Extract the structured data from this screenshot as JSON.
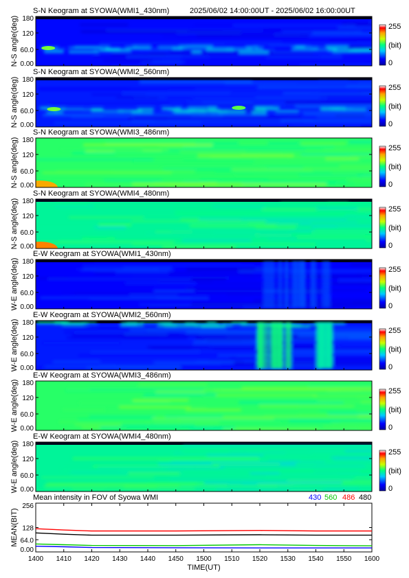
{
  "header": {
    "time_range": "2025/06/02 14:00:00UT - 2025/06/02 16:00:00UT"
  },
  "colorbar": {
    "max_label": "255",
    "unit_label": "(bit)",
    "min_label": "0"
  },
  "chart_data": [
    {
      "type": "heatmap",
      "title": "S-N Keogram at SYOWA(WMI1_430nm)",
      "ylabel": "N-S angle(deg)",
      "yticks": [
        "180",
        "120",
        "60.0",
        "0.00"
      ],
      "ylim": [
        0,
        180
      ],
      "xlim": [
        1400,
        1600
      ],
      "clim": [
        0,
        255
      ],
      "colormap": "rainbow",
      "base_level": 40,
      "features": [
        {
          "desc": "brighter band",
          "angle_range": [
            55,
            75
          ],
          "level": 95
        },
        {
          "desc": "green spot",
          "time": 1403,
          "angle": 65,
          "level": 150
        }
      ]
    },
    {
      "type": "heatmap",
      "title": "S-N Keogram at SYOWA(WMI2_560nm)",
      "ylabel": "N-S angle(deg)",
      "yticks": [
        "180",
        "120",
        "60.0",
        "0.00"
      ],
      "ylim": [
        0,
        180
      ],
      "xlim": [
        1400,
        1600
      ],
      "clim": [
        0,
        255
      ],
      "colormap": "rainbow",
      "base_level": 45,
      "features": [
        {
          "desc": "brighter band",
          "angle_range": [
            55,
            75
          ],
          "level": 100
        },
        {
          "desc": "green spot",
          "time": 1405,
          "angle": 65,
          "level": 150
        },
        {
          "desc": "green spot",
          "time": 1511,
          "angle": 70,
          "level": 145
        }
      ]
    },
    {
      "type": "heatmap",
      "title": "S-N Keogram at SYOWA(WMI3_486nm)",
      "ylabel": "N-S angle(deg)",
      "yticks": [
        "180",
        "120",
        "60.0",
        "0.00"
      ],
      "ylim": [
        0,
        180
      ],
      "xlim": [
        1400,
        1600
      ],
      "clim": [
        0,
        255
      ],
      "colormap": "rainbow",
      "base_level": 135,
      "features": [
        {
          "desc": "orange corner",
          "time": 1400,
          "angle": 0,
          "level": 200
        }
      ]
    },
    {
      "type": "heatmap",
      "title": "S-N Keogram at SYOWA(WMI4_480nm)",
      "ylabel": "N-S angle(deg)",
      "yticks": [
        "180",
        "120",
        "60.0",
        "0.00"
      ],
      "ylim": [
        0,
        180
      ],
      "xlim": [
        1400,
        1600
      ],
      "clim": [
        0,
        255
      ],
      "colormap": "rainbow",
      "base_level": 120,
      "features": [
        {
          "desc": "orange corner",
          "time": 1400,
          "angle": 0,
          "level": 210
        }
      ]
    },
    {
      "type": "heatmap",
      "title": "E-W Keogram at SYOWA(WMI1_430nm)",
      "ylabel": "W-E angle(deg)",
      "yticks": [
        "180",
        "120",
        "60.0",
        "0.00"
      ],
      "ylim": [
        0,
        180
      ],
      "xlim": [
        1400,
        1600
      ],
      "clim": [
        0,
        255
      ],
      "colormap": "rainbow",
      "base_level": 38,
      "features": [
        {
          "desc": "brighter streaks",
          "time_range": [
            1520,
            1545
          ],
          "level": 60
        }
      ]
    },
    {
      "type": "heatmap",
      "title": "E-W Keogram at SYOWA(WMI2_560nm)",
      "ylabel": "W-E angle(deg)",
      "yticks": [
        "180",
        "120",
        "60.0",
        "0.00"
      ],
      "ylim": [
        0,
        180
      ],
      "xlim": [
        1400,
        1600
      ],
      "clim": [
        0,
        255
      ],
      "colormap": "rainbow",
      "base_level": 45,
      "features": [
        {
          "desc": "brighter top edge",
          "angle_range": [
            165,
            180
          ],
          "level": 110
        },
        {
          "desc": "green columns",
          "time_range": [
            1518,
            1530
          ],
          "level": 130
        },
        {
          "desc": "green columns",
          "time_range": [
            1540,
            1545
          ],
          "level": 115
        }
      ]
    },
    {
      "type": "heatmap",
      "title": "E-W Keogram at SYOWA(WMI3_486nm)",
      "ylabel": "W-E angle(deg)",
      "yticks": [
        "180",
        "120",
        "60.0",
        "0.00"
      ],
      "ylim": [
        0,
        180
      ],
      "xlim": [
        1400,
        1600
      ],
      "clim": [
        0,
        255
      ],
      "colormap": "rainbow",
      "base_level": 135,
      "features": []
    },
    {
      "type": "heatmap",
      "title": "E-W Keogram at SYOWA(WMI4_480nm)",
      "ylabel": "W-E angle(deg)",
      "yticks": [
        "180",
        "120",
        "60.0",
        "0.00"
      ],
      "ylim": [
        0,
        180
      ],
      "xlim": [
        1400,
        1600
      ],
      "clim": [
        0,
        255
      ],
      "colormap": "rainbow",
      "base_level": 120,
      "features": []
    },
    {
      "type": "line",
      "title": "Mean intensity in FOV of Syowa WMI",
      "xlabel": "TIME(UT)",
      "ylabel": "MEAN(BIT)",
      "xlim": [
        1400,
        1600
      ],
      "ylim": [
        0,
        256
      ],
      "x_ticks": [
        1400,
        1410,
        1420,
        1430,
        1440,
        1450,
        1500,
        1510,
        1520,
        1530,
        1540,
        1550,
        1600
      ],
      "y_ticks": [
        "256",
        "128",
        "64.0",
        "0.00"
      ],
      "legend_position": "top-right",
      "series": [
        {
          "name": "430",
          "color": "#0000ff",
          "x": [
            1400,
            1410,
            1420,
            1450,
            1520,
            1540,
            1600
          ],
          "values": [
            30,
            27,
            23,
            22,
            21,
            21,
            21
          ]
        },
        {
          "name": "560",
          "color": "#00c800",
          "x": [
            1400,
            1410,
            1420,
            1450,
            1520,
            1540,
            1600
          ],
          "values": [
            42,
            38,
            34,
            33,
            38,
            34,
            32
          ]
        },
        {
          "name": "486",
          "color": "#ff0000",
          "x": [
            1400,
            1410,
            1420,
            1450,
            1520,
            1540,
            1600
          ],
          "values": [
            122,
            115,
            110,
            110,
            113,
            110,
            110
          ]
        },
        {
          "name": "480",
          "color": "#000000",
          "x": [
            1400,
            1410,
            1420,
            1450,
            1520,
            1540,
            1600
          ],
          "values": [
            100,
            93,
            88,
            88,
            90,
            88,
            88
          ]
        }
      ]
    }
  ]
}
